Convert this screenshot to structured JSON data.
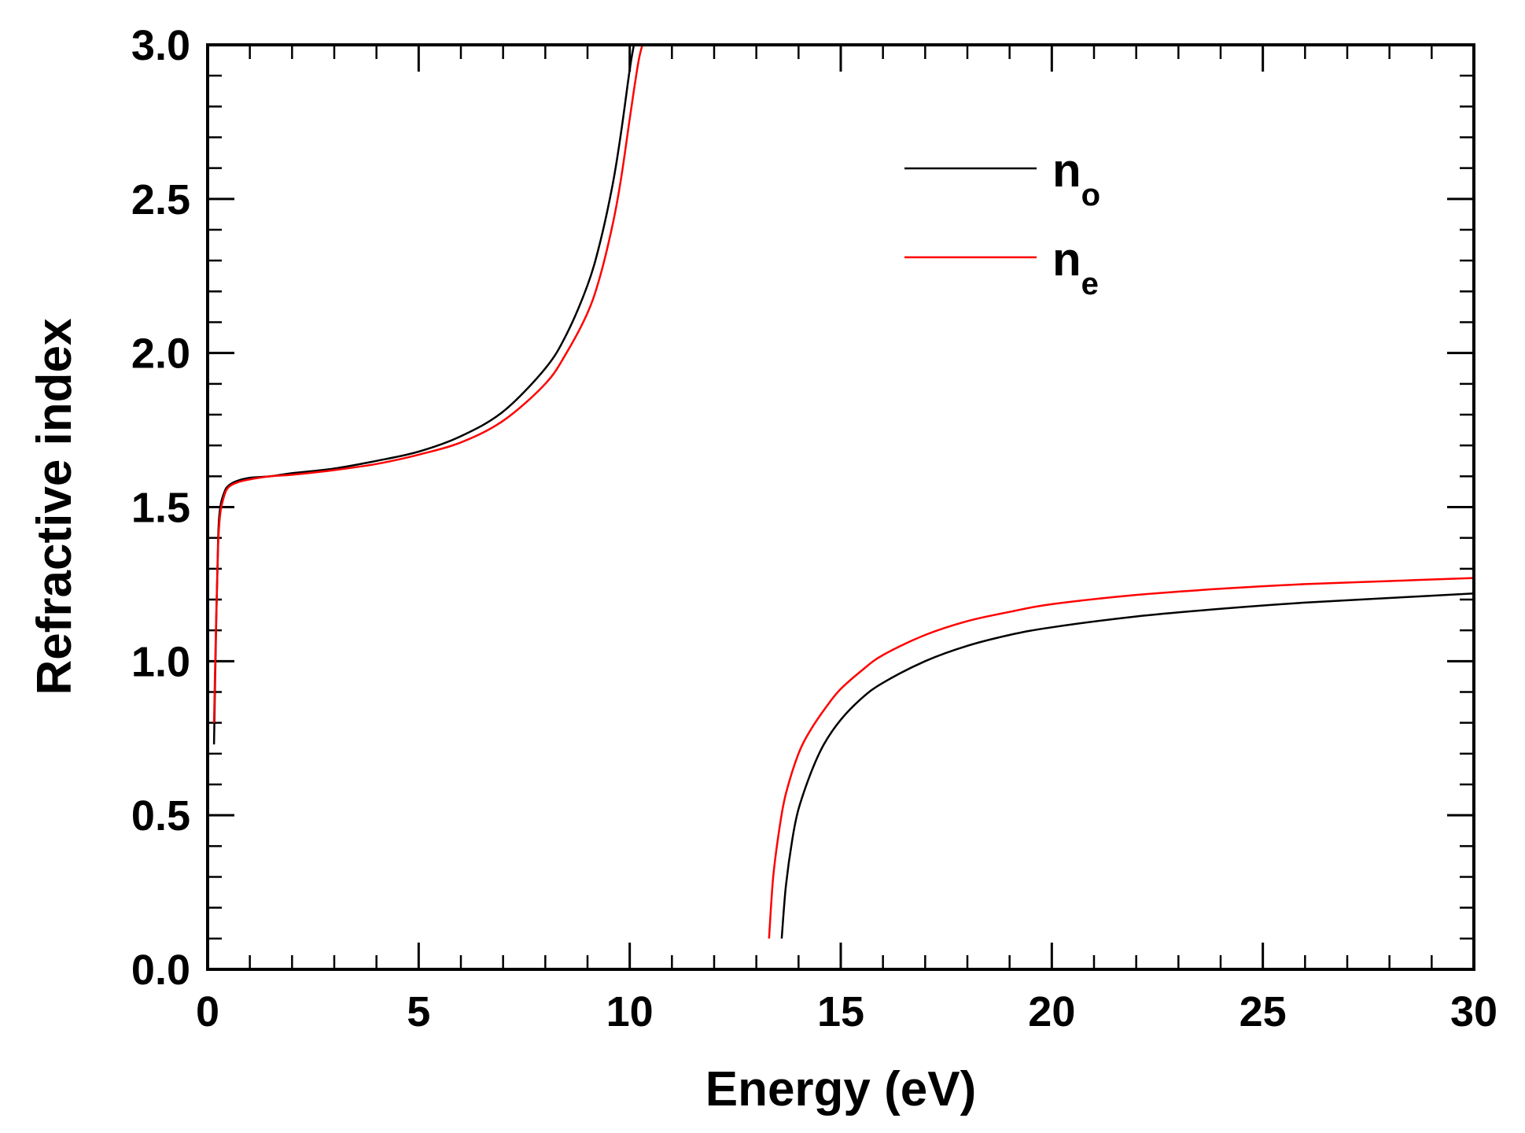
{
  "chart_data": {
    "type": "line",
    "xlabel": "Energy (eV)",
    "ylabel": "Refractive index",
    "xlim": [
      0,
      30
    ],
    "ylim": [
      0,
      3.0
    ],
    "x_ticks": [
      "0",
      "5",
      "10",
      "15",
      "20",
      "25",
      "30"
    ],
    "y_ticks": [
      "0.0",
      "0.5",
      "1.0",
      "1.5",
      "2.0",
      "2.5",
      "3.0"
    ],
    "x_tick_values": [
      0,
      5,
      10,
      15,
      20,
      25,
      30
    ],
    "y_tick_values": [
      0,
      0.5,
      1.0,
      1.5,
      2.0,
      2.5,
      3.0
    ],
    "x_minor_step": 1,
    "y_minor_step": 0.1,
    "grid": false,
    "legend_position": "top-right",
    "series": [
      {
        "name": "n",
        "name_subscript": "o",
        "color": "#000000",
        "segments": [
          {
            "x": [
              0.15,
              0.2,
              0.25,
              0.3,
              0.4,
              0.5,
              0.7,
              1.0,
              1.5,
              2.0,
              3.0,
              4.0,
              5.0,
              6.0,
              7.0,
              8.0,
              8.5,
              9.0,
              9.3,
              9.6,
              9.8,
              10.0,
              10.1
            ],
            "y": [
              0.73,
              1.1,
              1.4,
              1.5,
              1.55,
              1.57,
              1.585,
              1.595,
              1.6,
              1.61,
              1.625,
              1.65,
              1.68,
              1.73,
              1.81,
              1.95,
              2.06,
              2.22,
              2.36,
              2.55,
              2.72,
              2.92,
              3.0
            ]
          },
          {
            "x": [
              13.6,
              13.7,
              13.85,
              14.0,
              14.3,
              14.6,
              15.0,
              15.5,
              16.0,
              17.0,
              18.0,
              19.0,
              20.0,
              22.0,
              24.0,
              26.0,
              28.0,
              30.0
            ],
            "y": [
              0.1,
              0.27,
              0.42,
              0.52,
              0.64,
              0.73,
              0.81,
              0.88,
              0.93,
              1.0,
              1.05,
              1.085,
              1.11,
              1.145,
              1.17,
              1.19,
              1.205,
              1.22
            ]
          }
        ]
      },
      {
        "name": "n",
        "name_subscript": "e",
        "color": "#ff0000",
        "segments": [
          {
            "x": [
              0.15,
              0.2,
              0.25,
              0.3,
              0.4,
              0.5,
              0.7,
              1.0,
              1.5,
              2.0,
              3.0,
              4.0,
              5.0,
              6.0,
              7.0,
              8.0,
              8.5,
              9.0,
              9.3,
              9.6,
              9.8,
              10.0,
              10.2,
              10.3
            ],
            "y": [
              0.8,
              1.12,
              1.38,
              1.48,
              1.54,
              1.565,
              1.58,
              1.59,
              1.6,
              1.605,
              1.62,
              1.64,
              1.67,
              1.71,
              1.78,
              1.9,
              2.0,
              2.13,
              2.25,
              2.42,
              2.57,
              2.76,
              2.94,
              3.0
            ]
          },
          {
            "x": [
              13.3,
              13.4,
              13.55,
              13.7,
              14.0,
              14.3,
              14.7,
              15.0,
              15.5,
              16.0,
              17.0,
              18.0,
              19.0,
              20.0,
              22.0,
              24.0,
              26.0,
              28.0,
              30.0
            ],
            "y": [
              0.1,
              0.3,
              0.46,
              0.57,
              0.7,
              0.78,
              0.86,
              0.91,
              0.97,
              1.02,
              1.085,
              1.13,
              1.16,
              1.185,
              1.215,
              1.235,
              1.25,
              1.26,
              1.27
            ]
          }
        ]
      }
    ]
  }
}
